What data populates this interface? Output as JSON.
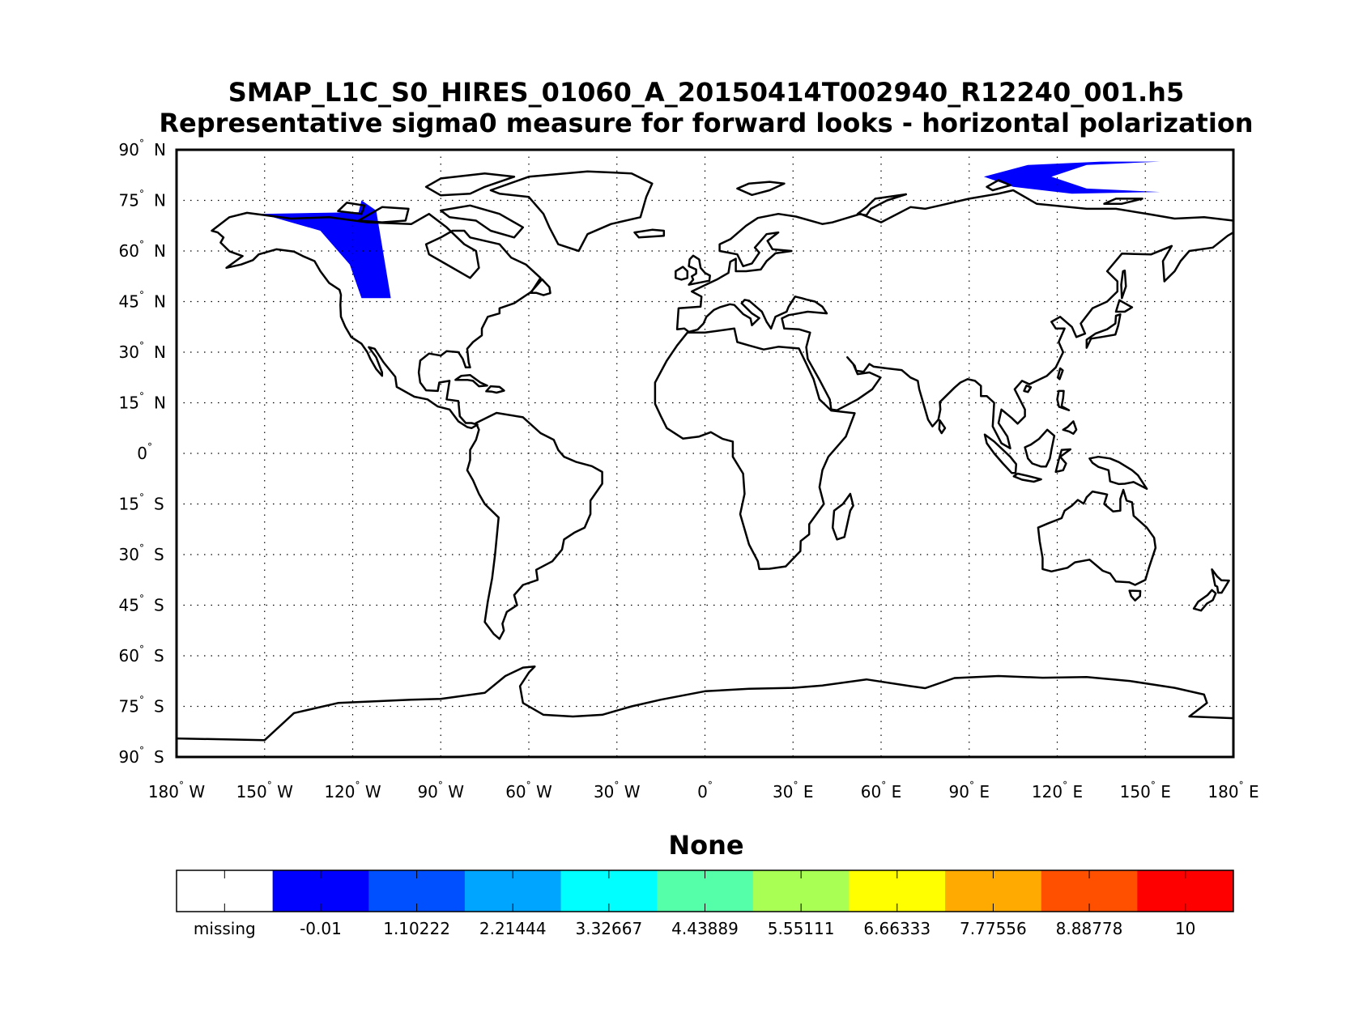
{
  "title": {
    "line1": "SMAP_L1C_S0_HIRES_01060_A_20150414T002940_R12240_001.h5",
    "line2": "Representative sigma0 measure for forward looks - horizontal polarization"
  },
  "map": {
    "projection": "equirectangular",
    "lon_range": [
      -180,
      180
    ],
    "lat_range": [
      -90,
      90
    ],
    "grid": "dotted",
    "lat_ticks": [
      {
        "deg": "90",
        "hemi": "N"
      },
      {
        "deg": "75",
        "hemi": "N"
      },
      {
        "deg": "60",
        "hemi": "N"
      },
      {
        "deg": "45",
        "hemi": "N"
      },
      {
        "deg": "30",
        "hemi": "N"
      },
      {
        "deg": "15",
        "hemi": "N"
      },
      {
        "deg": "0",
        "hemi": ""
      },
      {
        "deg": "15",
        "hemi": "S"
      },
      {
        "deg": "30",
        "hemi": "S"
      },
      {
        "deg": "45",
        "hemi": "S"
      },
      {
        "deg": "60",
        "hemi": "S"
      },
      {
        "deg": "75",
        "hemi": "S"
      },
      {
        "deg": "90",
        "hemi": "S"
      }
    ],
    "lon_ticks": [
      {
        "deg": "180",
        "hemi": "W"
      },
      {
        "deg": "150",
        "hemi": "W"
      },
      {
        "deg": "120",
        "hemi": "W"
      },
      {
        "deg": "90",
        "hemi": "W"
      },
      {
        "deg": "60",
        "hemi": "W"
      },
      {
        "deg": "30",
        "hemi": "W"
      },
      {
        "deg": "0",
        "hemi": ""
      },
      {
        "deg": "30",
        "hemi": "E"
      },
      {
        "deg": "60",
        "hemi": "E"
      },
      {
        "deg": "90",
        "hemi": "E"
      },
      {
        "deg": "120",
        "hemi": "E"
      },
      {
        "deg": "150",
        "hemi": "E"
      },
      {
        "deg": "180",
        "hemi": "E"
      }
    ],
    "swath_color": "#0000ff",
    "swaths": [
      {
        "region": "north-america",
        "lon_range": [
          -151,
          -107
        ],
        "lat_range": [
          46,
          75
        ]
      },
      {
        "region": "arctic-siberia",
        "lon_range": [
          95,
          155
        ],
        "lat_range": [
          77,
          87
        ]
      }
    ]
  },
  "colorbar": {
    "title": "None",
    "colors": [
      "#ffffff",
      "#0000ff",
      "#0050ff",
      "#00a5ff",
      "#00ffff",
      "#55ffaa",
      "#aaff55",
      "#ffff00",
      "#ffaa00",
      "#ff5000",
      "#ff0000"
    ],
    "labels": [
      "missing",
      "-0.01",
      "1.10222",
      "2.21444",
      "3.32667",
      "4.43889",
      "5.55111",
      "6.66333",
      "7.77556",
      "8.88778",
      "10"
    ]
  }
}
